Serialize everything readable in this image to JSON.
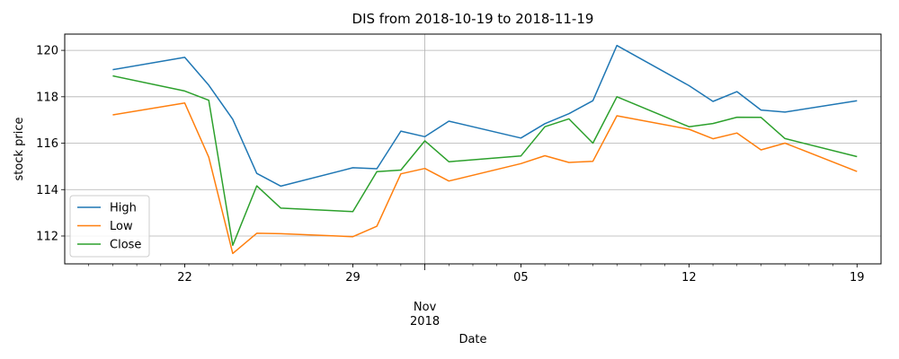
{
  "chart_data": {
    "type": "line",
    "title": "DIS from 2018-10-19 to 2018-11-19",
    "xlabel": "Date",
    "ylabel": "stock price",
    "x": [
      "2018-10-19",
      "2018-10-22",
      "2018-10-23",
      "2018-10-24",
      "2018-10-25",
      "2018-10-26",
      "2018-10-29",
      "2018-10-30",
      "2018-10-31",
      "2018-11-01",
      "2018-11-02",
      "2018-11-05",
      "2018-11-06",
      "2018-11-07",
      "2018-11-08",
      "2018-11-09",
      "2018-11-12",
      "2018-11-13",
      "2018-11-14",
      "2018-11-15",
      "2018-11-16",
      "2018-11-19"
    ],
    "x_ticks": [
      {
        "date": "2018-10-22",
        "label": "22"
      },
      {
        "date": "2018-10-29",
        "label": "29"
      },
      {
        "date": "2018-11-05",
        "label": "05"
      },
      {
        "date": "2018-11-12",
        "label": "12"
      },
      {
        "date": "2018-11-19",
        "label": "19"
      }
    ],
    "x_major_label": {
      "date": "2018-11-01",
      "line1": "Nov",
      "line2": "2018"
    },
    "xlim": [
      "2018-10-17",
      "2018-11-20"
    ],
    "ylim": [
      110.8,
      120.7
    ],
    "y_ticks": [
      112,
      114,
      116,
      118,
      120
    ],
    "y_tick_labels": [
      "112",
      "114",
      "116",
      "118",
      "120"
    ],
    "grid": true,
    "legend_position": "lower-left",
    "series": [
      {
        "name": "High",
        "color": "#1f77b4",
        "values": [
          119.17,
          119.7,
          118.5,
          117.03,
          114.7,
          114.15,
          114.94,
          114.9,
          116.52,
          116.28,
          116.95,
          116.22,
          116.84,
          117.27,
          117.83,
          120.21,
          118.48,
          117.8,
          118.22,
          117.43,
          117.34,
          117.83
        ]
      },
      {
        "name": "Low",
        "color": "#ff7f0e",
        "values": [
          117.22,
          117.73,
          115.4,
          111.25,
          112.12,
          112.1,
          111.97,
          112.42,
          114.68,
          114.91,
          114.37,
          115.12,
          115.46,
          115.17,
          115.22,
          117.18,
          116.6,
          116.19,
          116.44,
          115.71,
          116.0,
          114.78
        ]
      },
      {
        "name": "Close",
        "color": "#2ca02c",
        "values": [
          118.9,
          118.25,
          117.85,
          111.6,
          114.16,
          113.2,
          113.05,
          114.77,
          114.84,
          116.1,
          115.2,
          115.45,
          116.71,
          117.05,
          116.0,
          118.0,
          116.71,
          116.85,
          117.12,
          117.11,
          116.2,
          115.42
        ]
      }
    ]
  }
}
